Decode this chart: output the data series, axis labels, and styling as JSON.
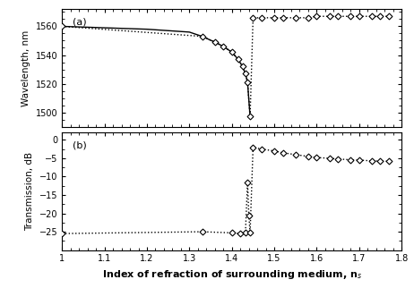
{
  "panel_a": {
    "x_data": [
      1.0,
      1.33,
      1.36,
      1.38,
      1.4,
      1.415,
      1.425,
      1.432,
      1.437,
      1.443,
      1.45,
      1.47,
      1.5,
      1.52,
      1.55,
      1.58,
      1.6,
      1.63,
      1.65,
      1.68,
      1.7,
      1.73,
      1.75,
      1.77
    ],
    "y_data": [
      1560,
      1553,
      1549,
      1546,
      1542,
      1537,
      1532,
      1527,
      1521,
      1497,
      1566,
      1566,
      1566,
      1566,
      1566,
      1566,
      1567,
      1567,
      1567,
      1567,
      1567,
      1567,
      1567,
      1567
    ],
    "ylabel": "Wavelength, nm",
    "label": "(a)",
    "ylim": [
      1490,
      1572
    ],
    "yticks": [
      1500,
      1520,
      1540,
      1560
    ],
    "solid_line_x": [
      1.0,
      1.05,
      1.1,
      1.15,
      1.2,
      1.25,
      1.3,
      1.33,
      1.36,
      1.38,
      1.4,
      1.415,
      1.425,
      1.432,
      1.437,
      1.443
    ],
    "solid_line_y": [
      1560,
      1559.5,
      1559,
      1558.5,
      1558,
      1557,
      1556,
      1553,
      1549,
      1546,
      1542,
      1537,
      1532,
      1527,
      1521,
      1497
    ]
  },
  "panel_b": {
    "x_data": [
      1.0,
      1.33,
      1.4,
      1.42,
      1.432,
      1.437,
      1.44,
      1.443,
      1.45,
      1.47,
      1.5,
      1.52,
      1.55,
      1.58,
      1.6,
      1.63,
      1.65,
      1.68,
      1.7,
      1.73,
      1.75,
      1.77
    ],
    "y_data": [
      -25.5,
      -25.0,
      -25.3,
      -25.5,
      -25.3,
      -11.5,
      -20.5,
      -25.3,
      -2.0,
      -2.5,
      -3.0,
      -3.5,
      -4.0,
      -4.5,
      -4.8,
      -5.0,
      -5.2,
      -5.4,
      -5.5,
      -5.7,
      -5.8,
      -5.8
    ],
    "ylabel": "Transmission, dB",
    "label": "(b)",
    "ylim": [
      -30,
      2
    ],
    "yticks": [
      0,
      -5,
      -10,
      -15,
      -20,
      -25
    ]
  },
  "xlabel": "Index of refraction of surrounding medium, n",
  "xlim": [
    1.0,
    1.8
  ],
  "xticks": [
    1.0,
    1.1,
    1.2,
    1.3,
    1.4,
    1.5,
    1.6,
    1.7,
    1.8
  ],
  "marker_size": 3.5,
  "line_color": "black",
  "marker_facecolor": "white",
  "marker_edgecolor": "black"
}
